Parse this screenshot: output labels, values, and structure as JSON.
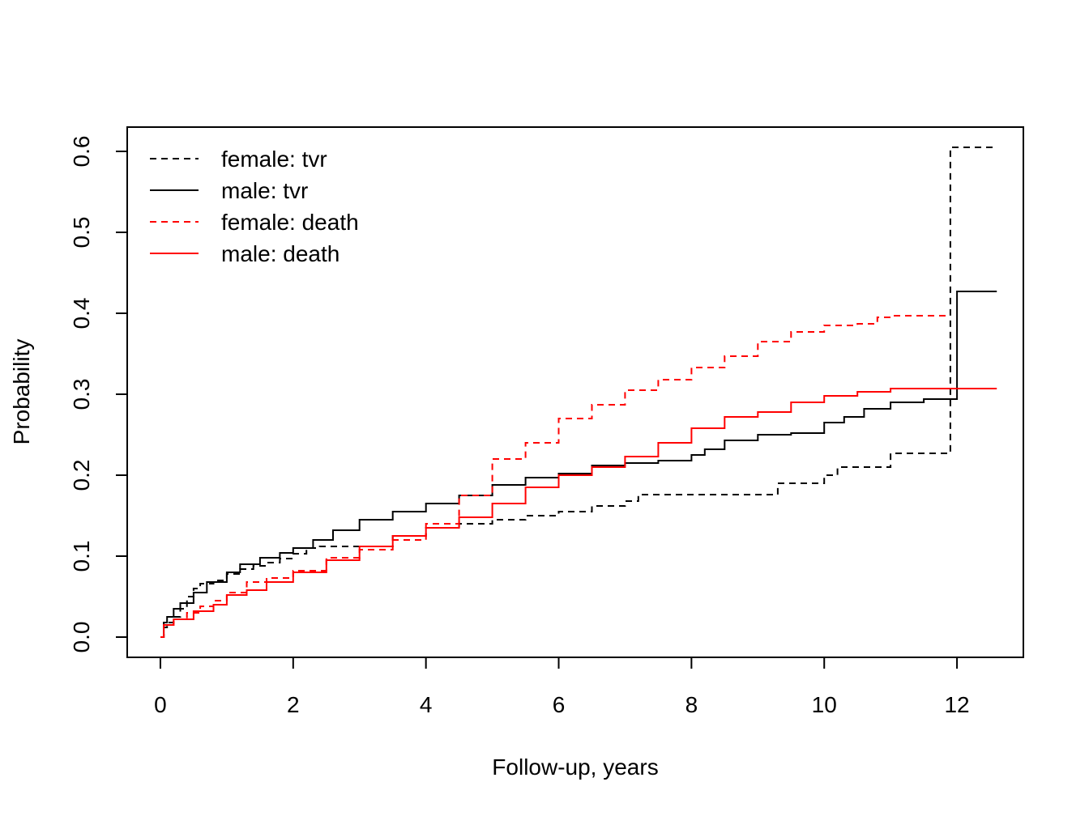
{
  "chart_data": {
    "type": "line",
    "title": "",
    "xlabel": "Follow-up, years",
    "ylabel": "Probability",
    "xlim": [
      -0.5,
      13.0
    ],
    "ylim": [
      -0.025,
      0.63
    ],
    "xticks": [
      "0",
      "2",
      "4",
      "6",
      "8",
      "10",
      "12"
    ],
    "yticks": [
      "0.0",
      "0.1",
      "0.2",
      "0.3",
      "0.4",
      "0.5",
      "0.6"
    ],
    "legend_position": "top-left",
    "grid": false,
    "series": [
      {
        "name": "female: tvr",
        "color": "#000000",
        "dash": "dashed",
        "x": [
          0,
          0.05,
          0.1,
          0.2,
          0.3,
          0.4,
          0.5,
          0.6,
          0.8,
          1.0,
          1.2,
          1.4,
          1.6,
          1.8,
          2.0,
          2.2,
          2.4,
          3.0,
          3.5,
          4.0,
          4.5,
          5.0,
          5.5,
          6.0,
          6.5,
          7.0,
          7.2,
          8.0,
          9.0,
          9.3,
          9.6,
          10.0,
          10.2,
          10.6,
          11.0,
          11.5,
          11.9,
          12.6
        ],
        "y": [
          0,
          0.012,
          0.018,
          0.025,
          0.035,
          0.05,
          0.06,
          0.066,
          0.07,
          0.078,
          0.084,
          0.088,
          0.092,
          0.097,
          0.103,
          0.11,
          0.112,
          0.112,
          0.125,
          0.135,
          0.14,
          0.145,
          0.15,
          0.155,
          0.162,
          0.168,
          0.176,
          0.176,
          0.176,
          0.19,
          0.19,
          0.2,
          0.21,
          0.21,
          0.227,
          0.227,
          0.605,
          0.605
        ]
      },
      {
        "name": "male: tvr",
        "color": "#000000",
        "dash": "solid",
        "x": [
          0,
          0.05,
          0.1,
          0.2,
          0.3,
          0.5,
          0.7,
          1.0,
          1.2,
          1.5,
          1.8,
          2.0,
          2.3,
          2.6,
          3.0,
          3.5,
          4.0,
          4.5,
          5.0,
          5.5,
          6.0,
          6.5,
          7.0,
          7.5,
          8.0,
          8.2,
          8.5,
          9.0,
          9.5,
          10.0,
          10.3,
          10.6,
          11.0,
          11.5,
          12.0,
          12.6
        ],
        "y": [
          0,
          0.018,
          0.025,
          0.035,
          0.042,
          0.055,
          0.068,
          0.08,
          0.09,
          0.098,
          0.104,
          0.11,
          0.12,
          0.132,
          0.145,
          0.155,
          0.165,
          0.175,
          0.188,
          0.197,
          0.202,
          0.212,
          0.215,
          0.218,
          0.225,
          0.232,
          0.243,
          0.25,
          0.252,
          0.265,
          0.272,
          0.282,
          0.29,
          0.294,
          0.427,
          0.427
        ]
      },
      {
        "name": "female: death",
        "color": "#ff0000",
        "dash": "dashed",
        "x": [
          0,
          0.05,
          0.2,
          0.4,
          0.6,
          0.8,
          1.0,
          1.3,
          1.6,
          2.0,
          2.5,
          3.0,
          3.5,
          4.0,
          4.5,
          5.0,
          5.5,
          6.0,
          6.5,
          7.0,
          7.5,
          8.0,
          8.5,
          9.0,
          9.5,
          10.0,
          10.5,
          10.8,
          11.0,
          11.9
        ],
        "y": [
          0,
          0.015,
          0.022,
          0.03,
          0.038,
          0.045,
          0.055,
          0.068,
          0.073,
          0.082,
          0.098,
          0.108,
          0.12,
          0.14,
          0.175,
          0.22,
          0.24,
          0.27,
          0.287,
          0.305,
          0.318,
          0.333,
          0.347,
          0.365,
          0.377,
          0.385,
          0.387,
          0.395,
          0.397,
          0.397
        ]
      },
      {
        "name": "male: death",
        "color": "#ff0000",
        "dash": "solid",
        "x": [
          0,
          0.05,
          0.2,
          0.5,
          0.8,
          1.0,
          1.3,
          1.6,
          2.0,
          2.5,
          3.0,
          3.5,
          4.0,
          4.5,
          5.0,
          5.5,
          6.0,
          6.5,
          7.0,
          7.5,
          8.0,
          8.5,
          9.0,
          9.5,
          10.0,
          10.5,
          11.0,
          11.5,
          12.0,
          12.6
        ],
        "y": [
          0,
          0.015,
          0.022,
          0.032,
          0.04,
          0.052,
          0.058,
          0.068,
          0.08,
          0.095,
          0.112,
          0.125,
          0.135,
          0.148,
          0.165,
          0.185,
          0.2,
          0.21,
          0.223,
          0.24,
          0.258,
          0.272,
          0.278,
          0.29,
          0.298,
          0.303,
          0.307,
          0.307,
          0.307,
          0.307
        ]
      }
    ]
  }
}
